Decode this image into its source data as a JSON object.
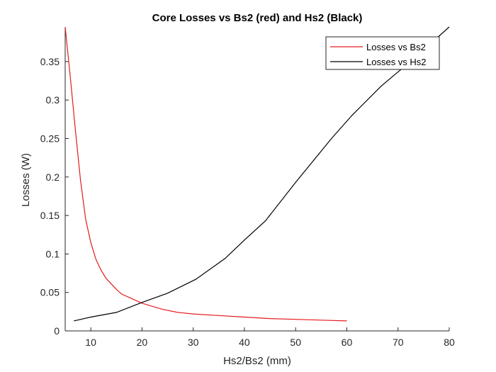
{
  "chart_data": {
    "type": "line",
    "title": "Core Losses vs Bs2 (red) and Hs2 (Black)",
    "xlabel": "Hs2/Bs2 (mm)",
    "ylabel": "Losses (W)",
    "xlim": [
      5,
      80
    ],
    "ylim": [
      0,
      0.395
    ],
    "xticks": [
      10,
      20,
      30,
      40,
      50,
      60,
      70,
      80
    ],
    "yticks": [
      0,
      0.05,
      0.1,
      0.15,
      0.2,
      0.25,
      0.3,
      0.35
    ],
    "ytick_labels": [
      "0",
      "0.05",
      "0.1",
      "0.15",
      "0.2",
      "0.25",
      "0.3",
      "0.35"
    ],
    "grid": false,
    "legend_position": "top-right",
    "series": [
      {
        "name": "Losses vs Bs2",
        "color": "#e41a1c",
        "x": [
          5,
          6,
          7,
          8,
          9,
          10,
          11,
          12,
          13,
          14,
          15,
          16,
          18,
          20,
          24,
          27,
          30,
          35,
          40,
          45,
          50,
          55,
          60
        ],
        "y": [
          0.395,
          0.33,
          0.26,
          0.195,
          0.145,
          0.115,
          0.093,
          0.079,
          0.068,
          0.061,
          0.054,
          0.048,
          0.042,
          0.036,
          0.028,
          0.024,
          0.022,
          0.02,
          0.018,
          0.016,
          0.015,
          0.014,
          0.013
        ]
      },
      {
        "name": "Losses vs Hs2",
        "color": "#000000",
        "x": [
          6.7,
          10,
          15,
          20,
          25,
          30.5,
          36.2,
          40,
          44.1,
          50,
          57,
          61,
          66.7,
          73.3,
          80
        ],
        "y": [
          0.013,
          0.018,
          0.024,
          0.037,
          0.049,
          0.067,
          0.094,
          0.118,
          0.143,
          0.193,
          0.25,
          0.28,
          0.318,
          0.355,
          0.395
        ]
      }
    ]
  }
}
